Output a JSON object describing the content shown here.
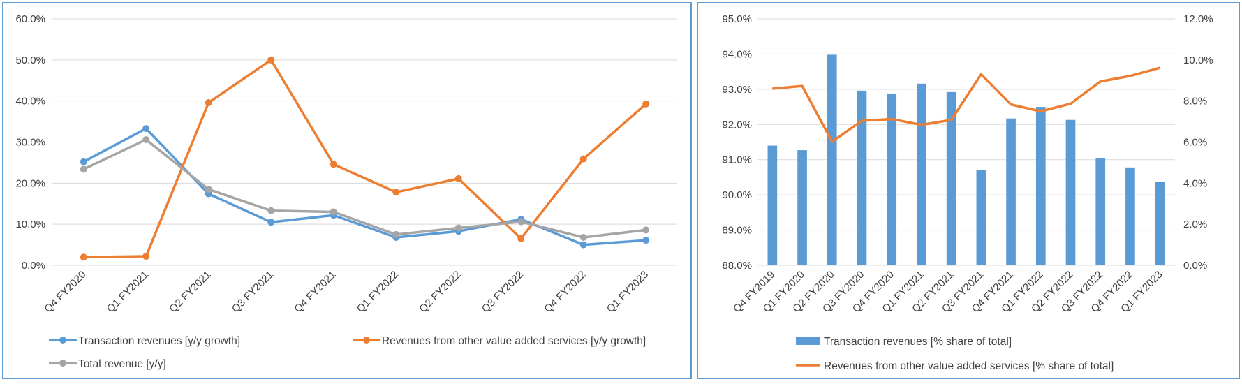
{
  "colors": {
    "blue": "#5b9bd5",
    "orange": "#ed7d31",
    "gray": "#a5a5a5",
    "grid": "#d9d9d9",
    "text": "#404040",
    "border": "#5b9bd5"
  },
  "chart_data": [
    {
      "type": "line",
      "title": "",
      "xlabel": "",
      "ylabel": "",
      "ylim": [
        0,
        60
      ],
      "y_ticks": [
        "0.0%",
        "10.0%",
        "20.0%",
        "30.0%",
        "40.0%",
        "50.0%",
        "60.0%"
      ],
      "grid": true,
      "legend_position": "bottom",
      "categories": [
        "Q4 FY2020",
        "Q1 FY2021",
        "Q2 FY2021",
        "Q3 FY2021",
        "Q4 FY2021",
        "Q1 FY2022",
        "Q2 FY2022",
        "Q3 FY2022",
        "Q4 FY2022",
        "Q1 FY2023"
      ],
      "series": [
        {
          "name": "Transaction revenues [y/y growth]",
          "color": "#5b9bd5",
          "values": [
            25.2,
            33.3,
            17.4,
            10.5,
            12.2,
            6.8,
            8.3,
            11.2,
            5.0,
            6.1
          ]
        },
        {
          "name": "Revenues from other value added services [y/y growth]",
          "color": "#ed7d31",
          "values": [
            2.0,
            2.2,
            39.6,
            50.0,
            24.6,
            17.8,
            21.1,
            6.5,
            25.9,
            39.3
          ]
        },
        {
          "name": "Total revenue [y/y]",
          "color": "#a5a5a5",
          "values": [
            23.4,
            30.6,
            18.5,
            13.3,
            13.0,
            7.5,
            9.1,
            10.6,
            6.8,
            8.6
          ]
        }
      ]
    },
    {
      "type": "bar+line",
      "title": "",
      "xlabel": "",
      "ylabel": "",
      "ylim": [
        88,
        95
      ],
      "y2lim": [
        0,
        12
      ],
      "y_ticks": [
        "88.0%",
        "89.0%",
        "90.0%",
        "91.0%",
        "92.0%",
        "93.0%",
        "94.0%",
        "95.0%"
      ],
      "y2_ticks": [
        "0.0%",
        "2.0%",
        "4.0%",
        "6.0%",
        "8.0%",
        "10.0%",
        "12.0%"
      ],
      "grid": true,
      "legend_position": "bottom",
      "categories": [
        "Q4 FY2019",
        "Q1 FY2020",
        "Q2 FY2020",
        "Q3 FY2020",
        "Q4 FY2020",
        "Q1 FY2021",
        "Q2 FY2021",
        "Q3 FY2021",
        "Q4 FY2021",
        "Q1 FY2022",
        "Q2 FY2022",
        "Q3 FY2022",
        "Q4 FY2022",
        "Q1 FY2023"
      ],
      "bars": {
        "name": "Transaction revenues [% share of total]",
        "color": "#5b9bd5",
        "axis": "left",
        "values": [
          91.4,
          91.27,
          93.98,
          92.96,
          92.88,
          93.16,
          92.92,
          90.7,
          92.17,
          92.5,
          92.13,
          91.05,
          90.78,
          90.38
        ]
      },
      "line": {
        "name": "Revenues from other value added services [% share of total]",
        "color": "#ed7d31",
        "axis": "right",
        "values": [
          8.6,
          8.73,
          6.02,
          7.04,
          7.12,
          6.84,
          7.08,
          9.3,
          7.83,
          7.5,
          7.87,
          8.95,
          9.22,
          9.62
        ]
      }
    }
  ]
}
